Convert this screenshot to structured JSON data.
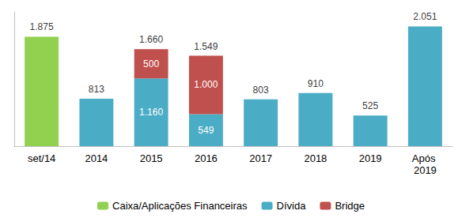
{
  "chart_data": {
    "type": "bar",
    "stacked": true,
    "data_labels": true,
    "tick_labels": "x",
    "grid": false,
    "legend": "bottom",
    "categories": [
      "set/14",
      "2014",
      "2015",
      "2016",
      "2017",
      "2018",
      "2019",
      "Após 2019"
    ],
    "ylim": [
      0,
      2300
    ],
    "series": [
      {
        "name": "Caixa/Aplicações Financeiras",
        "color": "#92d050",
        "values": [
          1875,
          null,
          null,
          null,
          null,
          null,
          null,
          null
        ],
        "value_labels": [
          null,
          null,
          null,
          null,
          null,
          null,
          null,
          null
        ]
      },
      {
        "name": "Dívida",
        "color": "#4bacc6",
        "values": [
          null,
          813,
          1160,
          549,
          803,
          910,
          525,
          2051
        ],
        "value_labels": [
          null,
          null,
          "1.160",
          "549",
          null,
          null,
          null,
          null
        ]
      },
      {
        "name": "Bridge",
        "color": "#c0504d",
        "values": [
          null,
          null,
          500,
          1000,
          null,
          null,
          null,
          null
        ],
        "value_labels": [
          null,
          null,
          "500",
          "1.000",
          null,
          null,
          null,
          null
        ]
      }
    ],
    "totals": [
      1875,
      813,
      1660,
      1549,
      803,
      910,
      525,
      2051
    ],
    "total_labels": [
      "1.875",
      "813",
      "1.660",
      "1.549",
      "803",
      "910",
      "525",
      "2.051"
    ]
  }
}
